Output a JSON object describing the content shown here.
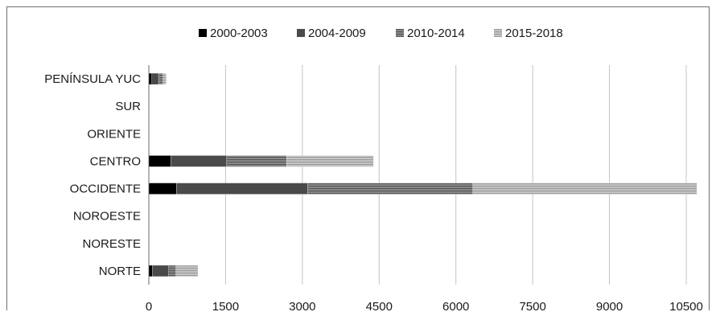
{
  "chart_data": {
    "type": "bar",
    "orientation": "horizontal",
    "stacked": true,
    "categories": [
      "PENÍNSULA YUC",
      "SUR",
      "ORIENTE",
      "CENTRO",
      "OCCIDENTE",
      "NOROESTE",
      "NORESTE",
      "NORTE"
    ],
    "series": [
      {
        "name": "2000-2003",
        "color": "#000000",
        "pattern": "solid",
        "values": [
          60,
          0,
          0,
          430,
          540,
          0,
          0,
          70
        ]
      },
      {
        "name": "2004-2009",
        "color": "#4a4a4a",
        "pattern": "solid",
        "values": [
          130,
          0,
          0,
          1090,
          2560,
          0,
          0,
          320
        ]
      },
      {
        "name": "2010-2014",
        "color": "#707070",
        "pattern": "horizontal-lines",
        "values": [
          90,
          0,
          0,
          1170,
          3230,
          0,
          0,
          140
        ]
      },
      {
        "name": "2015-2018",
        "color": "#a8a8a8",
        "pattern": "horizontal-lines",
        "values": [
          60,
          0,
          0,
          1700,
          4380,
          0,
          0,
          430
        ]
      }
    ],
    "x_ticks": [
      "0",
      "1500",
      "3000",
      "4500",
      "6000",
      "7500",
      "9000",
      "10500"
    ],
    "xlim": [
      0,
      10500
    ],
    "grid": true,
    "legend_position": "top"
  }
}
